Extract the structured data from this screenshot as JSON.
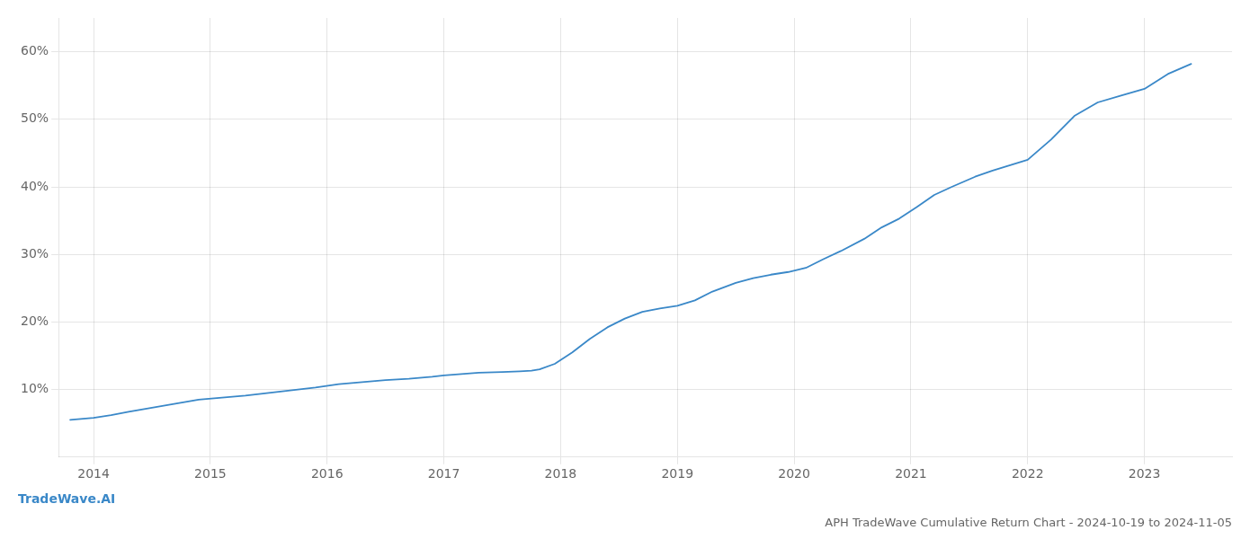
{
  "chart_data": {
    "type": "line",
    "title": "APH TradeWave Cumulative Return Chart - 2024-10-19 to 2024-11-05",
    "annotations": [
      "TradeWave.AI"
    ],
    "x": [
      2013.8,
      2014.0,
      2014.15,
      2014.3,
      2014.5,
      2014.7,
      2014.9,
      2015.1,
      2015.3,
      2015.5,
      2015.7,
      2015.9,
      2016.1,
      2016.3,
      2016.5,
      2016.7,
      2016.9,
      2017.0,
      2017.15,
      2017.3,
      2017.5,
      2017.65,
      2017.75,
      2017.82,
      2017.95,
      2018.1,
      2018.25,
      2018.4,
      2018.55,
      2018.7,
      2018.85,
      2019.0,
      2019.15,
      2019.3,
      2019.5,
      2019.65,
      2019.8,
      2019.95,
      2020.1,
      2020.25,
      2020.4,
      2020.6,
      2020.75,
      2020.9,
      2021.05,
      2021.2,
      2021.35,
      2021.55,
      2021.7,
      2021.85,
      2022.0,
      2022.2,
      2022.4,
      2022.6,
      2022.8,
      2023.0,
      2023.2,
      2023.4
    ],
    "values": [
      0.055,
      0.058,
      0.062,
      0.067,
      0.073,
      0.079,
      0.085,
      0.088,
      0.091,
      0.095,
      0.099,
      0.103,
      0.108,
      0.111,
      0.114,
      0.116,
      0.119,
      0.121,
      0.123,
      0.125,
      0.126,
      0.127,
      0.128,
      0.13,
      0.138,
      0.155,
      0.175,
      0.192,
      0.205,
      0.215,
      0.22,
      0.224,
      0.232,
      0.245,
      0.258,
      0.265,
      0.27,
      0.274,
      0.28,
      0.293,
      0.305,
      0.323,
      0.34,
      0.353,
      0.37,
      0.388,
      0.4,
      0.415,
      0.424,
      0.432,
      0.44,
      0.47,
      0.505,
      0.525,
      0.535,
      0.545,
      0.567,
      0.582
    ],
    "color": "#3a88c8",
    "xlim": [
      2013.7,
      2023.75
    ],
    "ylim": [
      0.0,
      0.65
    ],
    "xticks": [
      2014,
      2015,
      2016,
      2017,
      2018,
      2019,
      2020,
      2021,
      2022,
      2023
    ],
    "yticks": [
      {
        "value": 0.1,
        "label": "10%"
      },
      {
        "value": 0.2,
        "label": "20%"
      },
      {
        "value": 0.3,
        "label": "30%"
      },
      {
        "value": 0.4,
        "label": "40%"
      },
      {
        "value": 0.5,
        "label": "50%"
      },
      {
        "value": 0.6,
        "label": "60%"
      }
    ],
    "grid": true
  }
}
